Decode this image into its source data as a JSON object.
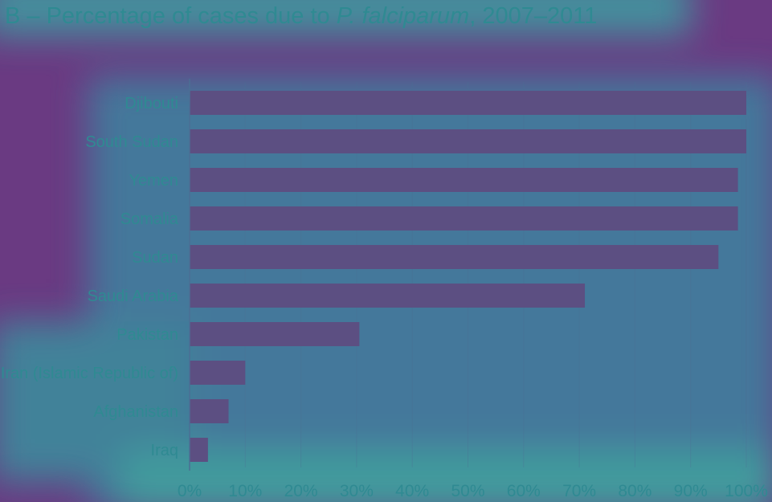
{
  "chart_data": {
    "type": "bar",
    "orientation": "horizontal",
    "title": {
      "prefix": "B – Percentage of cases due to ",
      "italic": "P. falciparum",
      "suffix": ", 2007–2011"
    },
    "categories": [
      "Djibouti",
      "South Sudan",
      "Yemen",
      "Somalia",
      "Sudan",
      "Saudi Arabia",
      "Pakistan",
      "Iran (Islamic Republic of)",
      "Afghanistan",
      "Iraq"
    ],
    "values": [
      100,
      100,
      98.5,
      98.5,
      95,
      71,
      30.5,
      10,
      7,
      3.3
    ],
    "xlim": [
      0,
      100
    ],
    "xticks": [
      "0%",
      "10%",
      "20%",
      "30%",
      "40%",
      "50%",
      "60%",
      "70%",
      "80%",
      "90%",
      "100%"
    ],
    "grid": true,
    "colors": {
      "bar": "#5c4f82",
      "text": "#2f8a92",
      "background": "#6a3a82",
      "axis": "#4b6f94"
    }
  }
}
